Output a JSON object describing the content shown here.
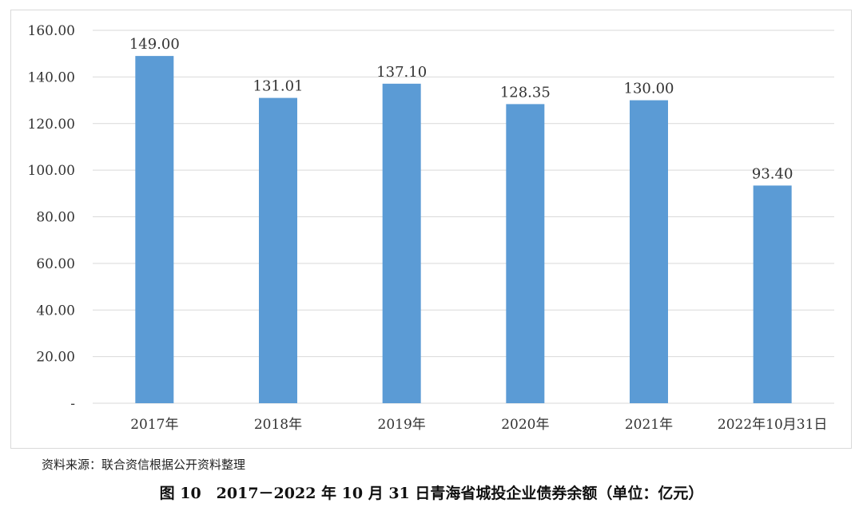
{
  "chart_data": {
    "type": "bar",
    "categories": [
      "2017年",
      "2018年",
      "2019年",
      "2020年",
      "2021年",
      "2022年10月31日"
    ],
    "values": [
      149.0,
      131.01,
      137.1,
      128.35,
      130.0,
      93.4
    ],
    "value_labels": [
      "149.00",
      "131.01",
      "137.10",
      "128.35",
      "130.00",
      "93.40"
    ],
    "y_ticks": [
      "-",
      "20.00",
      "40.00",
      "60.00",
      "80.00",
      "100.00",
      "120.00",
      "140.00",
      "160.00"
    ],
    "ylim": [
      0,
      160
    ],
    "grid": true,
    "bar_color": "#5b9bd5",
    "grid_color": "#d9d9d9"
  },
  "source_note": "资料来源：联合资信根据公开资料整理",
  "caption": "图 10　2017－2022 年 10 月 31 日青海省城投企业债券余额（单位：亿元）"
}
